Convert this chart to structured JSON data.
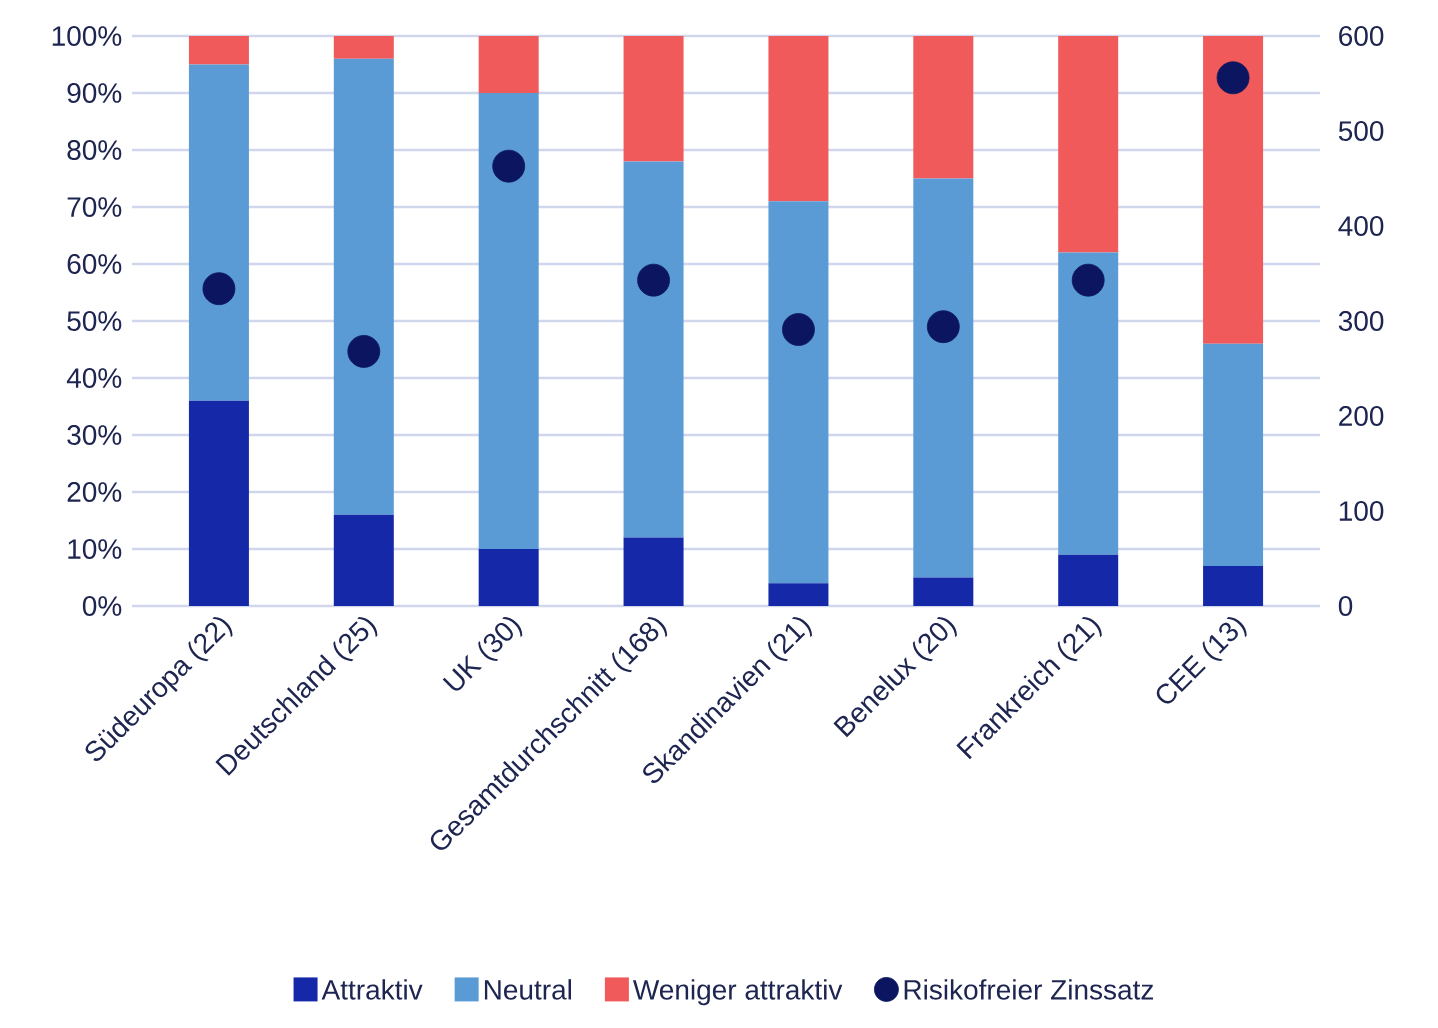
{
  "chart_data": {
    "type": "bar",
    "stacked": true,
    "categories": [
      "Südeuropa (22)",
      "Deutschland (25)",
      "UK (30)",
      "Gesamtdurchschnitt (168)",
      "Skandinavien (21)",
      "Benelux (20)",
      "Frankreich (21)",
      "CEE (13)"
    ],
    "series": [
      {
        "name": "Attraktiv",
        "color": "#1428a8",
        "values": [
          36,
          16,
          10,
          12,
          4,
          5,
          9,
          7
        ]
      },
      {
        "name": "Neutral",
        "color": "#5b9bd5",
        "values": [
          59,
          80,
          80,
          66,
          67,
          70,
          53,
          39
        ]
      },
      {
        "name": "Weniger attraktiv",
        "color": "#f05a5a",
        "values": [
          5,
          4,
          10,
          22,
          29,
          25,
          38,
          54
        ]
      },
      {
        "name": "Risikofreier Zinssatz",
        "color": "#0c1660",
        "type": "scatter",
        "axis": "y2",
        "x": [
          "Südeuropa (22)",
          "Deutschland (25)",
          "UK (30)",
          "Gesamtdurchschnitt (168)",
          "Skandinavien (21)",
          "Benelux (20)",
          "Frankreich (21)",
          "CEE (13)"
        ],
        "values": [
          334,
          268,
          463,
          343,
          291,
          294,
          343,
          556
        ]
      }
    ],
    "ylim": [
      0,
      100
    ],
    "yticks": [
      {
        "value": 0,
        "label": "0%"
      },
      {
        "value": 10,
        "label": "10%"
      },
      {
        "value": 20,
        "label": "20%"
      },
      {
        "value": 30,
        "label": "30%"
      },
      {
        "value": 40,
        "label": "40%"
      },
      {
        "value": 50,
        "label": "50%"
      },
      {
        "value": 60,
        "label": "60%"
      },
      {
        "value": 70,
        "label": "70%"
      },
      {
        "value": 80,
        "label": "80%"
      },
      {
        "value": 90,
        "label": "90%"
      },
      {
        "value": 100,
        "label": "100%"
      }
    ],
    "y2lim": [
      0,
      600
    ],
    "y2ticks": [
      0,
      100,
      200,
      300,
      400,
      500,
      600
    ],
    "grid": "y",
    "legend": "bottom",
    "marker": "circle"
  }
}
